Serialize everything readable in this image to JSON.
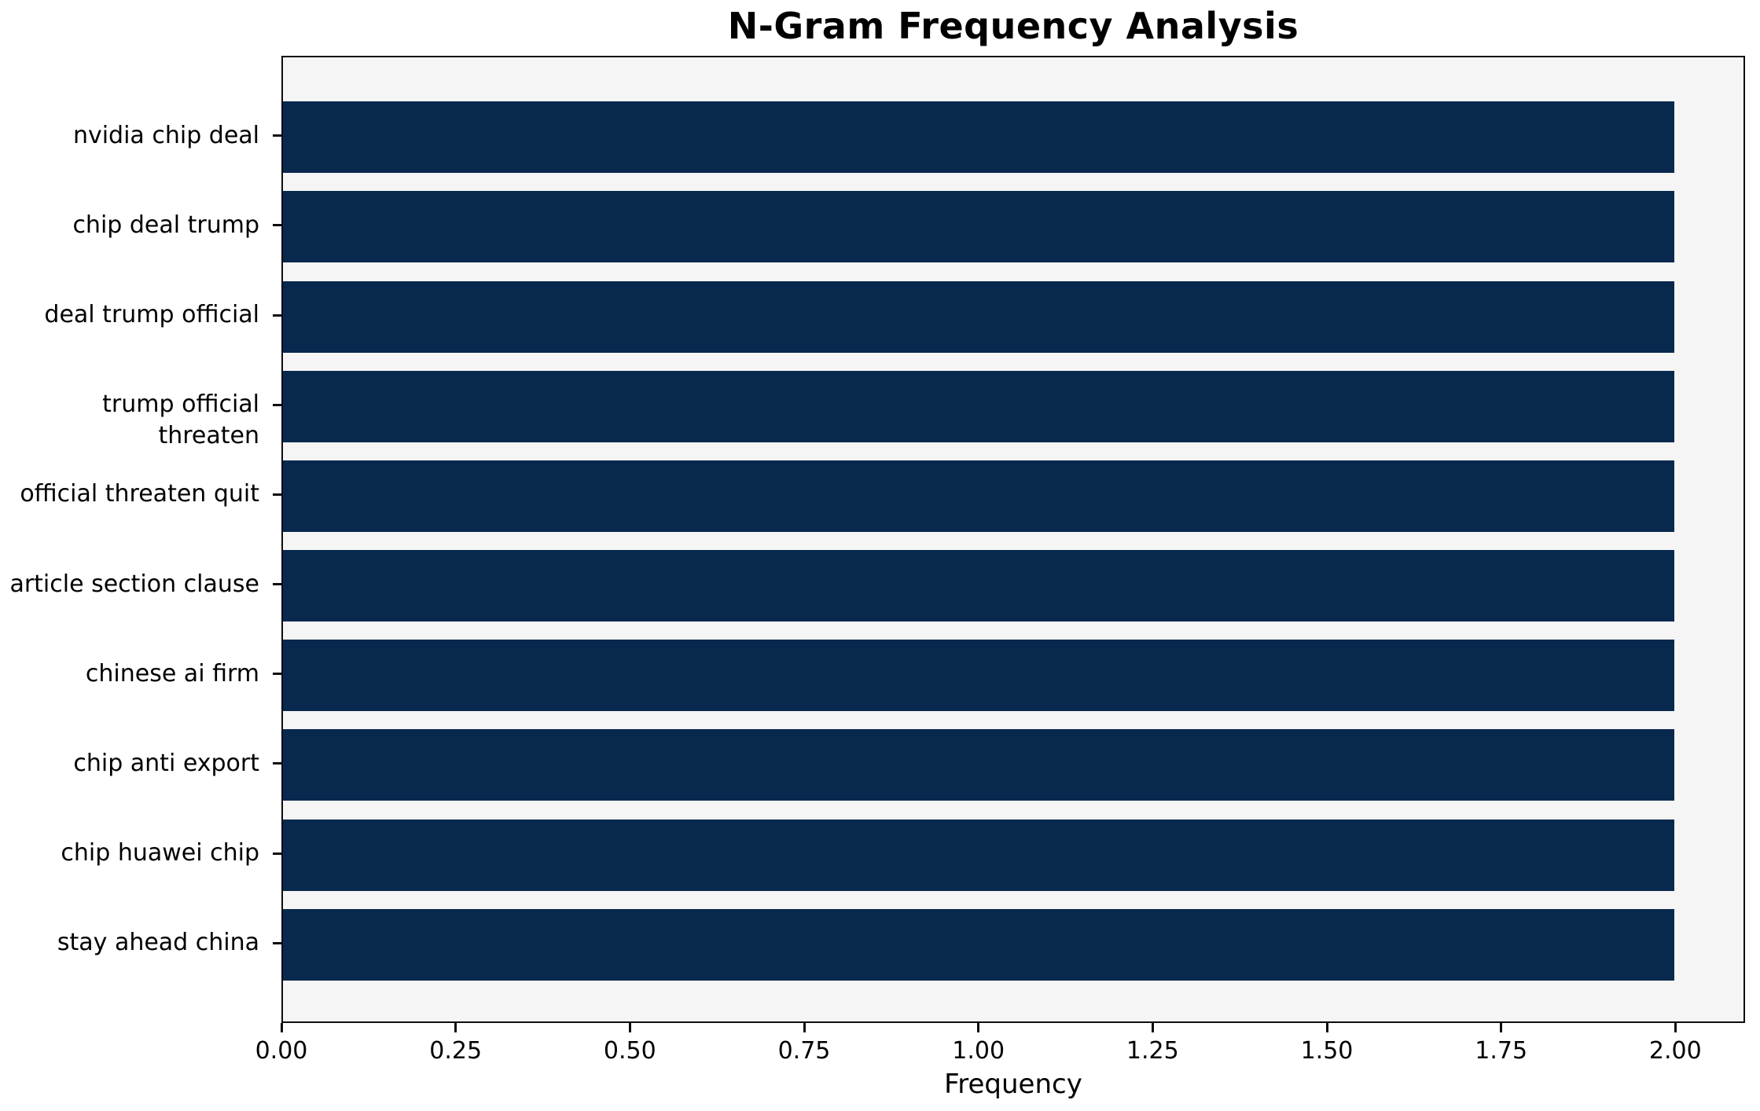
{
  "chart_data": {
    "type": "bar",
    "orientation": "horizontal",
    "title": "N-Gram Frequency Analysis",
    "xlabel": "Frequency",
    "ylabel": "",
    "categories": [
      "nvidia chip deal",
      "chip deal trump",
      "deal trump official",
      "trump official threaten",
      "official threaten quit",
      "article section clause",
      "chinese ai firm",
      "chip anti export",
      "chip huawei chip",
      "stay ahead china"
    ],
    "values": [
      2,
      2,
      2,
      2,
      2,
      2,
      2,
      2,
      2,
      2
    ],
    "xlim": [
      0,
      2.1
    ],
    "xticks": [
      0,
      0.25,
      0.5,
      0.75,
      1,
      1.25,
      1.5,
      1.75,
      2
    ],
    "xtick_labels": [
      "0.00",
      "0.25",
      "0.50",
      "0.75",
      "1.00",
      "1.25",
      "1.50",
      "1.75",
      "2.00"
    ],
    "grid": false,
    "legend": "none",
    "colors": {
      "bar": "#08284e",
      "plot_background": "#f5f5f5",
      "figure_background": "#ffffff",
      "axis": "#0d0d0d",
      "text": "#000000"
    }
  }
}
